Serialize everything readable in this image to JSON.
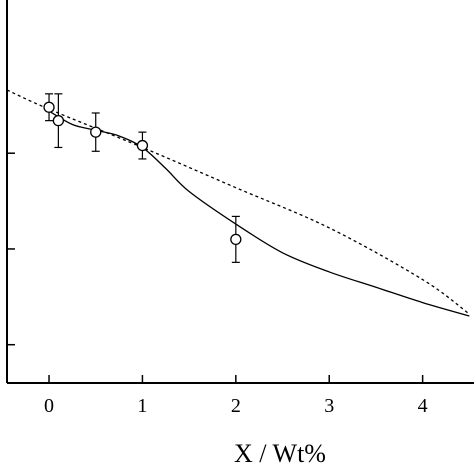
{
  "chart_data": {
    "type": "scatter",
    "title": "",
    "xlabel": "X / Wt%",
    "ylabel": "",
    "xlim": [
      -0.45,
      4.55
    ],
    "ylim": [
      0.0,
      1.0
    ],
    "x_ticks": [
      0,
      1,
      2,
      3,
      4
    ],
    "x_tick_labels": [
      "0",
      "1",
      "2",
      "3",
      "4"
    ],
    "y_ticks": [
      0.1,
      0.35,
      0.6
    ],
    "grid": false,
    "legend": "none",
    "series": [
      {
        "kind": "points_with_error_bars",
        "marker": "open-circle",
        "points": [
          {
            "x": 0.0,
            "y": 0.72,
            "err": 0.035
          },
          {
            "x": 0.1,
            "y": 0.685,
            "err": 0.07
          },
          {
            "x": 0.5,
            "y": 0.655,
            "err": 0.05
          },
          {
            "x": 1.0,
            "y": 0.62,
            "err": 0.035
          },
          {
            "x": 2.0,
            "y": 0.375,
            "err": 0.06
          }
        ]
      },
      {
        "kind": "fit-solid",
        "color": "#000000",
        "x": [
          0.0,
          0.25,
          0.5,
          0.75,
          1.0,
          1.25,
          1.5,
          2.0,
          2.5,
          3.0,
          3.5,
          4.0,
          4.5
        ],
        "y": [
          0.71,
          0.675,
          0.66,
          0.645,
          0.615,
          0.56,
          0.5,
          0.415,
          0.34,
          0.29,
          0.25,
          0.21,
          0.175
        ]
      },
      {
        "kind": "fit-dashed",
        "color": "#000000",
        "x": [
          -0.45,
          0.0,
          1.0,
          2.0,
          3.0,
          4.0,
          4.5
        ],
        "y": [
          0.765,
          0.715,
          0.615,
          0.51,
          0.405,
          0.27,
          0.18
        ]
      }
    ]
  }
}
